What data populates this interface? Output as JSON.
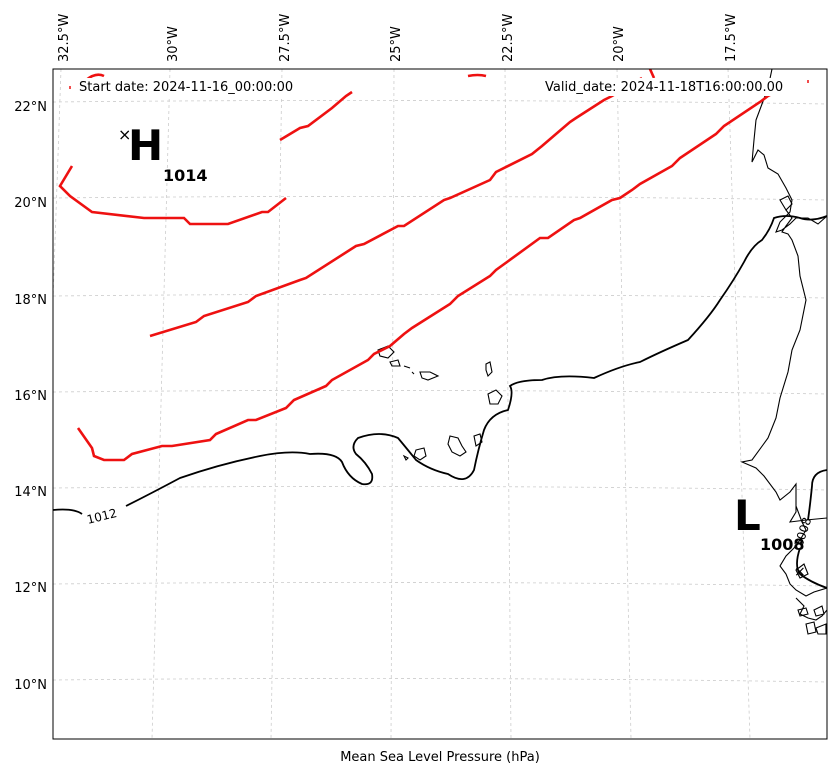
{
  "map": {
    "xlabel": "Mean Sea Level Pressure (hPa)",
    "start_date": "Start date: 2024-11-16_00:00:00",
    "valid_date": "Valid_date: 2024-11-18T16:00:00.00",
    "lon_ticks": [
      "32.5°W",
      "30°W",
      "27.5°W",
      "25°W",
      "22.5°W",
      "20°W",
      "17.5°W"
    ],
    "lat_ticks": [
      "22°N",
      "20°N",
      "18°N",
      "16°N",
      "14°N",
      "12°N",
      "10°N"
    ],
    "high": {
      "letter": "H",
      "value": "1014"
    },
    "low": {
      "letter": "L",
      "value": "1008"
    },
    "contour_labels": [
      "1012",
      "1008"
    ],
    "colors": {
      "high_isobar": "#ee1111",
      "isobar": "#000000",
      "grid": "#cccccc"
    }
  }
}
